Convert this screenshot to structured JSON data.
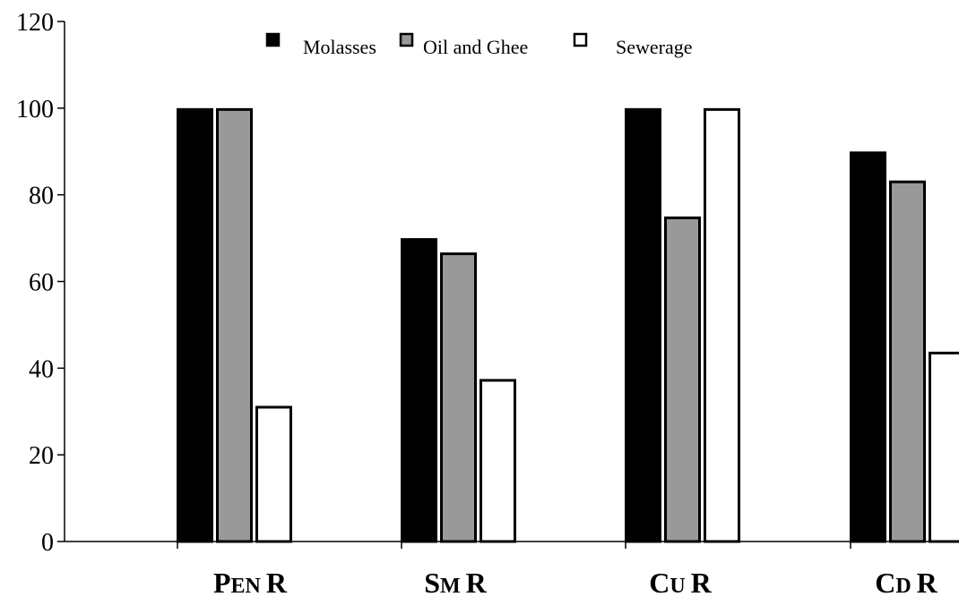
{
  "chart_data": {
    "type": "bar",
    "title": "",
    "xlabel": "",
    "ylabel": "",
    "ylim": [
      0,
      120
    ],
    "yticks": [
      0,
      20,
      40,
      60,
      80,
      100,
      120
    ],
    "grid": false,
    "legend_position": "top-center",
    "categories": [
      {
        "big1": "P",
        "small": "EN",
        "big2": "R"
      },
      {
        "big1": "S",
        "small": "M",
        "big2": "R"
      },
      {
        "big1": "C",
        "small": "U",
        "big2": "R"
      },
      {
        "big1": "C",
        "small": "D",
        "big2": "R"
      }
    ],
    "series": [
      {
        "name": "Molasses",
        "color": "#000000",
        "values": [
          100,
          70,
          100,
          90
        ]
      },
      {
        "name": "Oil and Ghee",
        "color": "#999999",
        "values": [
          100,
          66.7,
          75,
          83.3
        ]
      },
      {
        "name": "Sewerage",
        "color": "#ffffff",
        "values": [
          31.3,
          37.5,
          100,
          43.8
        ]
      }
    ]
  }
}
